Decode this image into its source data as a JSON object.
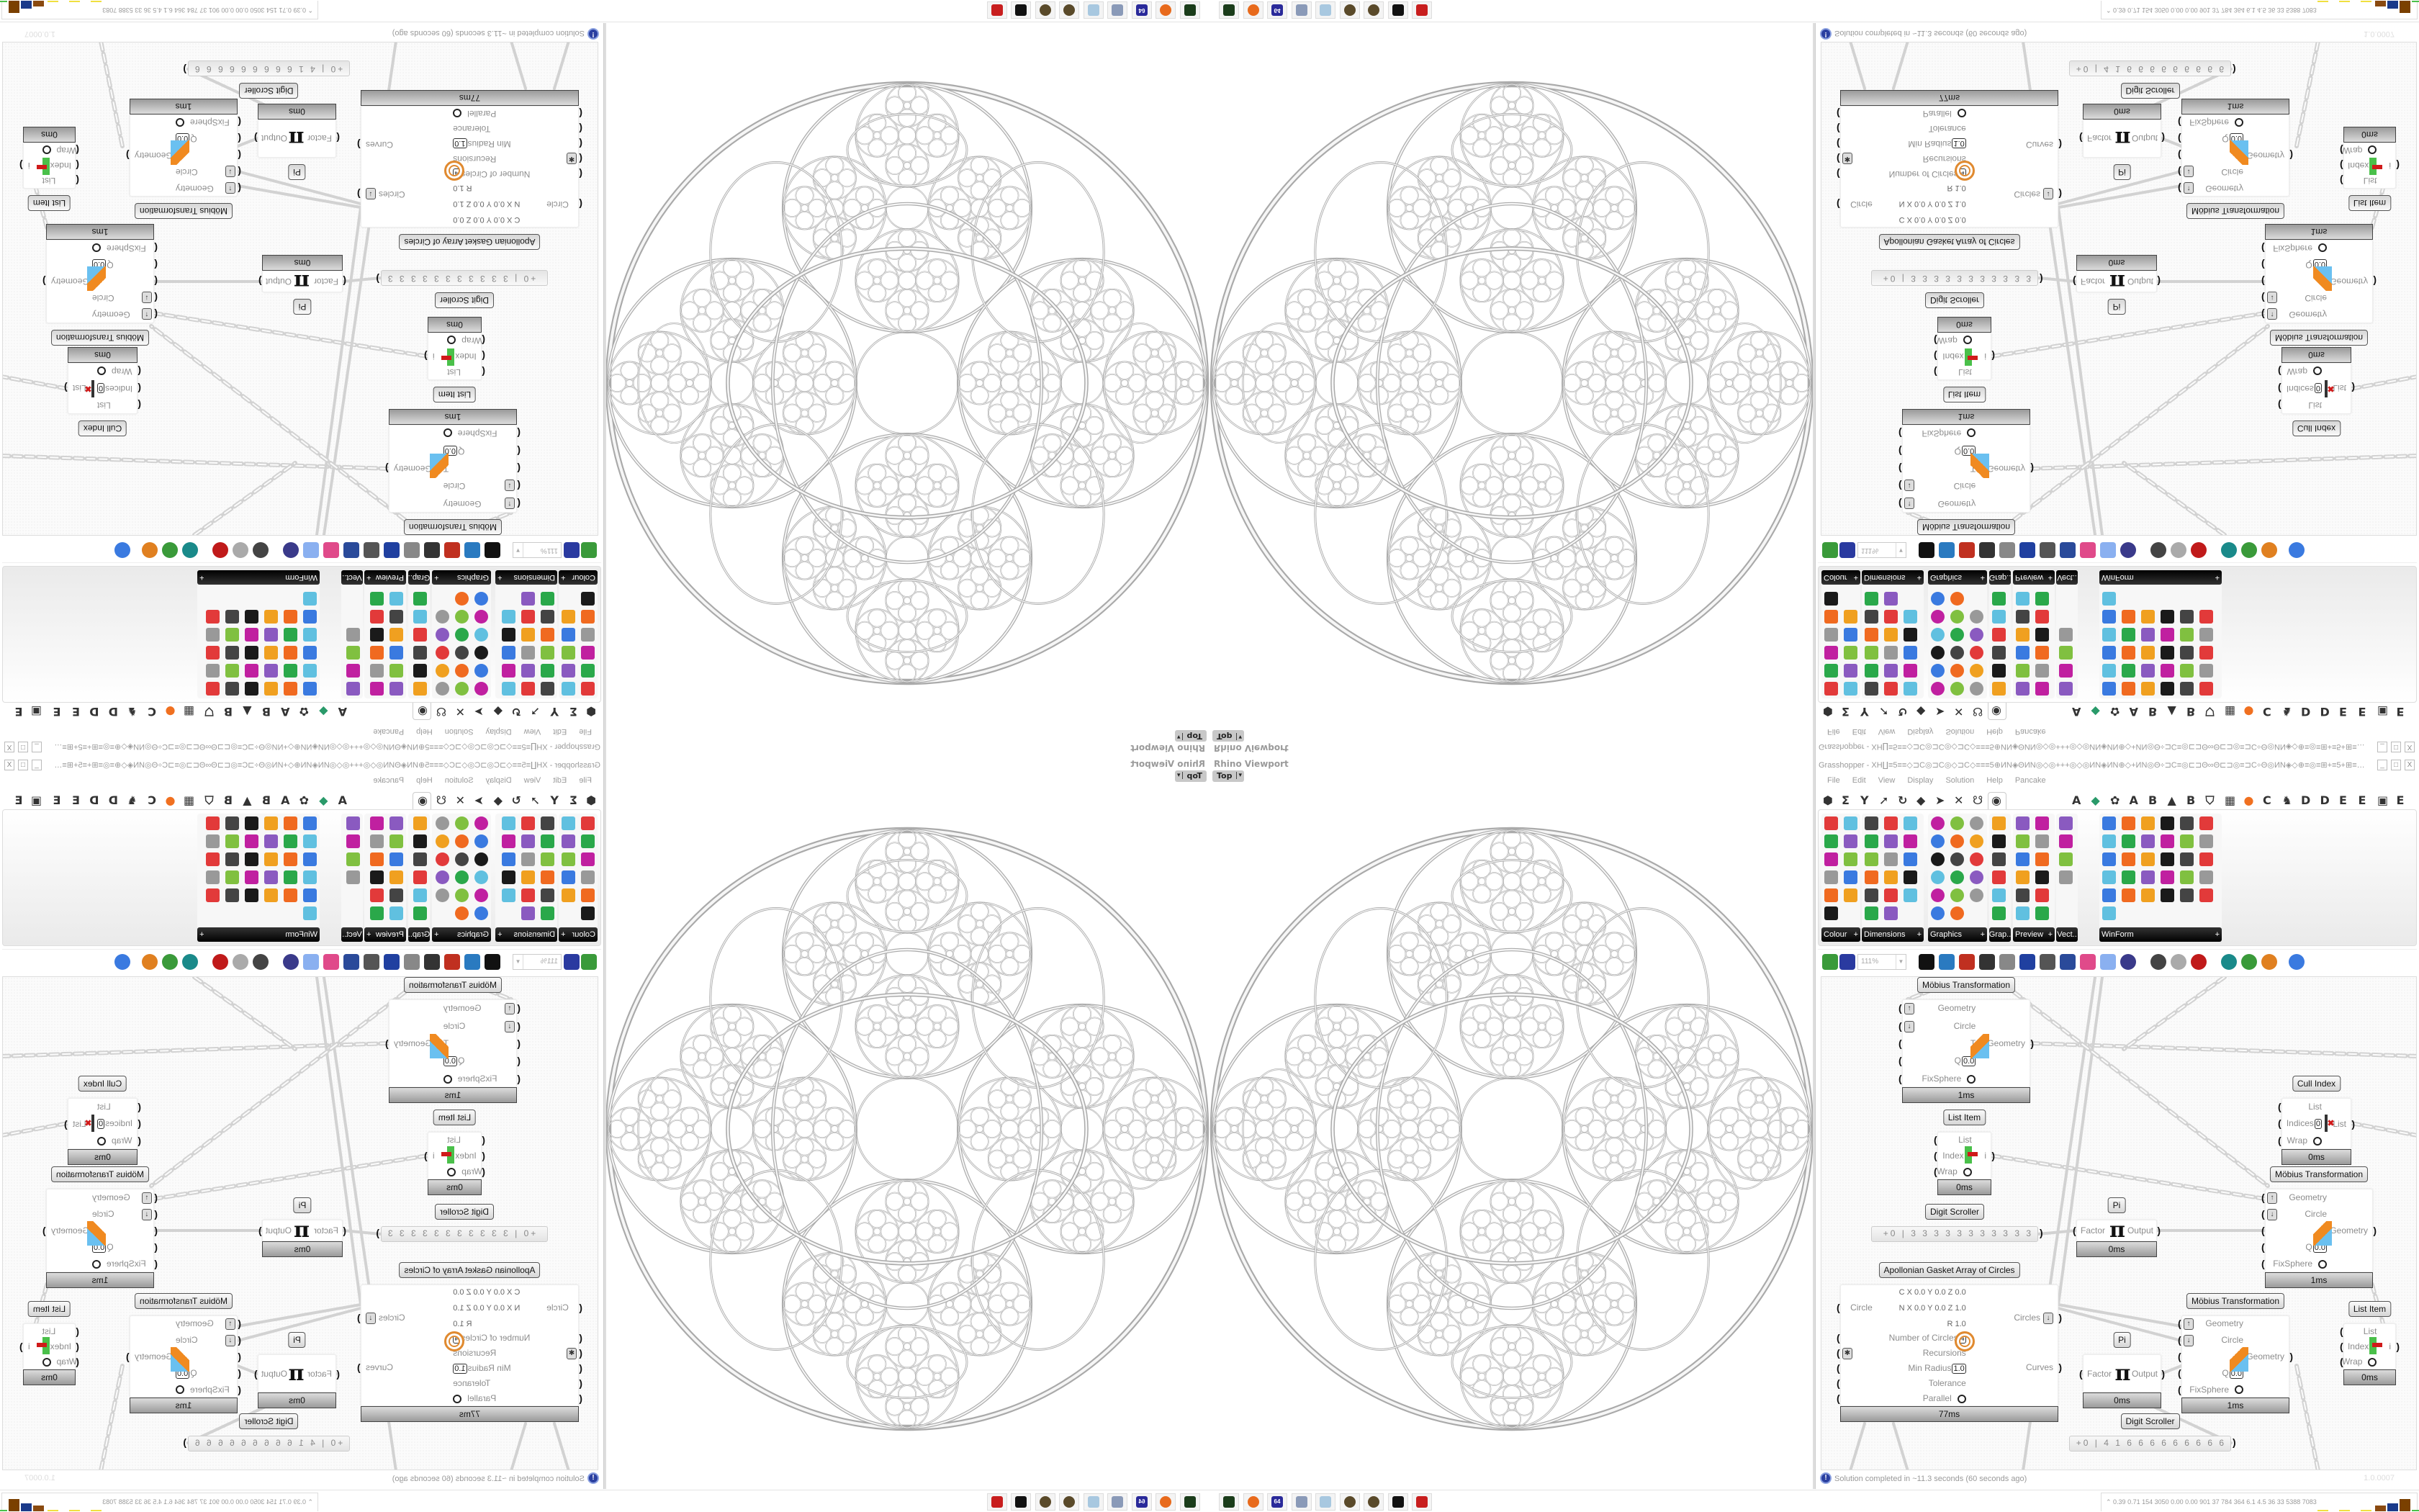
{
  "taskbar": {
    "icons": [
      "terminal-icon",
      "firefox-icon",
      "floppy-icon",
      "script-icon",
      "notepad-icon",
      "coin-icon",
      "coin-icon",
      "inkscape-icon",
      "red-app-icon"
    ],
    "icon_colors": [
      "#1b3d1b",
      "#e86a1c",
      "#2a2a9a",
      "#8a9ab8",
      "#a8c8e0",
      "#5a4a2a",
      "#5a4a2a",
      "#111111",
      "#c81e1e"
    ],
    "floppy_label": "64",
    "perf_meter": "0.39 0.71 154 3050 0.00 0.00 901 37 784 364 6.1 4.5 36 33 5388 7083"
  },
  "viewport": {
    "label": "Rhino Viewport",
    "view": "Top",
    "view_arrow": "▾"
  },
  "gh": {
    "title": "Grasshopper - XH∐≡5≡≡◇⊐C◎⊐C◎◇⊐C◇≡≡≡5⊕ИN◈ΘИN◎◇◎+++◎◇◎ИN◈ИN⊕◇+ИN◎Θ÷⊐C≡◎⊏⊐Θ∞Θ⊏⊐◎≡⊐C÷Θ◎ИN◈◇⊕≡◎≡⊞+≡5+⊞≡◎≡⊕◇+◎⊐≡⊞+÷⊐C...",
    "window_buttons": [
      "_",
      "□",
      "X"
    ],
    "menu": [
      "File",
      "Edit",
      "View",
      "Display",
      "Solution",
      "Help",
      "Pancake"
    ],
    "tabs_left": [
      "⬢",
      "Σ",
      "Y",
      "➚",
      "↻",
      "◆",
      "➤",
      "✕",
      "☋",
      "◉"
    ],
    "tabs_right": [
      "A",
      "◆",
      "✿",
      "A",
      "B",
      "▲",
      "B",
      "⛉",
      "▦",
      "●",
      "C",
      "♞",
      "D",
      "D",
      "E",
      "E",
      "▣",
      "E"
    ],
    "selected_tab": "◉",
    "panels": [
      {
        "label": "Colour",
        "cols": 2,
        "count": 11
      },
      {
        "label": "Dimensions",
        "cols": 3,
        "count": 17
      },
      {
        "label": "Graphics",
        "cols": 3,
        "count": 17
      },
      {
        "label": "Grap..",
        "cols": 1,
        "count": 6
      },
      {
        "label": "Preview",
        "cols": 2,
        "count": 12
      },
      {
        "label": "Vect..",
        "cols": 1,
        "count": 4
      },
      {
        "label": "WinForm",
        "cols": 6,
        "count": 31
      }
    ],
    "panel_expand": "+",
    "zoom": "111%",
    "toolbar_icons": [
      "new-file",
      "save",
      "zoom-extents",
      "preview-eye",
      "sketch-pen",
      "bake",
      "at-sign",
      "gha",
      "window",
      "search",
      "package",
      "bulb",
      "wire-cross",
      "mesh-shade",
      "shape-wire",
      "shape-red",
      "surface-teal",
      "surface-green",
      "sphere-orange",
      "sphere-blue"
    ],
    "status": "Solution completed in ~11.3 seconds (60 seconds ago)",
    "version": "1.0.0007",
    "nodes": [
      {
        "title": "Möbius Transformation",
        "icon": "mobius",
        "time": "1ms",
        "inputs": [
          {
            "label": "Geometry",
            "flag": "↑"
          },
          {
            "label": "Circle",
            "flag": "↓"
          },
          {
            "label": "T"
          },
          {
            "label": "Q",
            "value": "0.0"
          },
          {
            "label": "FixSphere",
            "toggle": true
          }
        ],
        "outputs": [
          {
            "label": "Geometry"
          }
        ]
      },
      {
        "title": "List Item",
        "icon": "listitem",
        "time": "0ms",
        "inputs": [
          {
            "label": "List"
          },
          {
            "label": "Index",
            "value": "1"
          },
          {
            "label": "Wrap",
            "toggle": true
          }
        ],
        "outputs": [
          {
            "label": "i"
          }
        ]
      },
      {
        "title": "Pi",
        "icon": "pi",
        "time": "0ms",
        "inputs": [
          {
            "label": "Factor"
          }
        ],
        "outputs": [
          {
            "label": "Output"
          }
        ]
      },
      {
        "title": "Cull Index",
        "icon": "cull",
        "time": "0ms",
        "inputs": [
          {
            "label": "List"
          },
          {
            "label": "Indices",
            "value": "0"
          },
          {
            "label": "Wrap",
            "toggle": true
          }
        ],
        "outputs": [
          {
            "label": "List"
          }
        ]
      },
      {
        "title": "Möbius Transformation",
        "icon": "mobius",
        "time": "1ms",
        "inputs": [
          {
            "label": "Geometry",
            "flag": "↑"
          },
          {
            "label": "Circle",
            "flag": "↓"
          },
          {
            "label": "T"
          },
          {
            "label": "Q",
            "value": "0.0"
          },
          {
            "label": "FixSphere",
            "toggle": true
          }
        ],
        "outputs": [
          {
            "label": "Geometry"
          }
        ]
      },
      {
        "title": "Apollonian Gasket Array of Circles",
        "icon": "gasket",
        "time": "77ms",
        "inputs": [
          {
            "label": "Circle",
            "values": [
              "C X 0.0 Y 0.0 Z 0.0",
              "N X 0.0 Y 0.0 Z 1.0",
              "R 1.0"
            ]
          },
          {
            "label": "Number of Circles",
            "value": "4"
          },
          {
            "label": "Recursions",
            "flag": "✱"
          },
          {
            "label": "Min Radius",
            "value": "1.0"
          },
          {
            "label": "Tolerance"
          },
          {
            "label": "Parallel",
            "toggle": true
          }
        ],
        "outputs": [
          {
            "label": "Circles",
            "flag": "↓"
          },
          {
            "label": "Curves"
          }
        ]
      },
      {
        "title": "Pi",
        "icon": "pi",
        "time": "0ms",
        "inputs": [
          {
            "label": "Factor"
          }
        ],
        "outputs": [
          {
            "label": "Output"
          }
        ]
      },
      {
        "title": "Möbius Transformation",
        "icon": "mobius",
        "time": "1ms",
        "inputs": [
          {
            "label": "Geometry",
            "flag": "↑"
          },
          {
            "label": "Circle",
            "flag": "↓"
          },
          {
            "label": "T"
          },
          {
            "label": "Q",
            "value": "0.0"
          },
          {
            "label": "FixSphere",
            "toggle": true
          }
        ],
        "outputs": [
          {
            "label": "Geometry"
          }
        ]
      },
      {
        "title": "List Item",
        "icon": "listitem",
        "time": "0ms",
        "inputs": [
          {
            "label": "List"
          },
          {
            "label": "Index",
            "value": "0"
          },
          {
            "label": "Wrap",
            "toggle": true
          }
        ],
        "outputs": [
          {
            "label": "i"
          }
        ]
      }
    ],
    "scrollers": [
      {
        "title": "Digit Scroller",
        "value": "+0 | 3 3 3 3 3 3 3 3 3 3 3"
      },
      {
        "title": "Digit Scroller",
        "value": "+0 | 4 1 6 6 6 6 6 6 6 6 6"
      }
    ]
  }
}
